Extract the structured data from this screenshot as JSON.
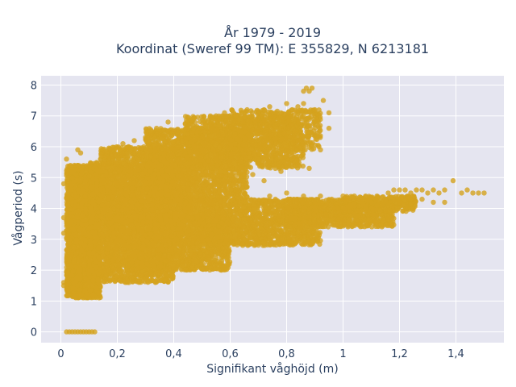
{
  "chart_data": {
    "type": "scatter",
    "title_line1": "År 1979 - 2019",
    "title_line2": "Koordinat (Sweref 99 TM): E 355829, N 6213181",
    "xlabel": "Signifikant våghöjd (m)",
    "ylabel": "Vågperiod (s)",
    "xlim": [
      -0.07,
      1.57
    ],
    "ylim": [
      -0.35,
      8.3
    ],
    "xticks": [
      0,
      0.2,
      0.4,
      0.6,
      0.8,
      1,
      1.2,
      1.4
    ],
    "xtick_labels": [
      "0",
      "0,2",
      "0,4",
      "0,6",
      "0,8",
      "1",
      "1,2",
      "1,4"
    ],
    "yticks": [
      0,
      1,
      2,
      3,
      4,
      5,
      6,
      7,
      8
    ],
    "ytick_labels": [
      "0",
      "1",
      "2",
      "3",
      "4",
      "5",
      "6",
      "7",
      "8"
    ],
    "grid": true,
    "marker_color": "#d4a21e",
    "plot_bg": "#e5e5f0",
    "points": [
      [
        0.02,
        0
      ],
      [
        0.03,
        0
      ],
      [
        0.04,
        0
      ],
      [
        0.05,
        0
      ],
      [
        0.06,
        0
      ],
      [
        0.07,
        0
      ],
      [
        0.08,
        0
      ],
      [
        0.09,
        0
      ],
      [
        0.1,
        0
      ],
      [
        0.11,
        0
      ],
      [
        0.12,
        0
      ],
      [
        0.01,
        1.5
      ],
      [
        0.01,
        1.6
      ],
      [
        0.01,
        3.2
      ],
      [
        0.01,
        3.7
      ],
      [
        0.01,
        4.8
      ],
      [
        0.02,
        5.6
      ],
      [
        0.06,
        5.9
      ],
      [
        0.07,
        5.8
      ],
      [
        0.16,
        5.7
      ],
      [
        0.18,
        5.7
      ],
      [
        0.21,
        5.9
      ],
      [
        0.3,
        6.3
      ],
      [
        0.35,
        6.5
      ],
      [
        0.38,
        6.8
      ],
      [
        0.43,
        6.2
      ],
      [
        0.47,
        6.6
      ],
      [
        0.52,
        6.8
      ],
      [
        0.55,
        7.0
      ],
      [
        0.58,
        7.1
      ],
      [
        0.62,
        7.0
      ],
      [
        0.64,
        6.9
      ],
      [
        0.66,
        7.2
      ],
      [
        0.7,
        7.1
      ],
      [
        0.72,
        7.2
      ],
      [
        0.74,
        7.3
      ],
      [
        0.76,
        7.1
      ],
      [
        0.78,
        7.1
      ],
      [
        0.8,
        7.4
      ],
      [
        0.82,
        7.2
      ],
      [
        0.84,
        7.3
      ],
      [
        0.85,
        7.0
      ],
      [
        0.86,
        7.4
      ],
      [
        0.86,
        7.8
      ],
      [
        0.87,
        7.9
      ],
      [
        0.88,
        7.8
      ],
      [
        0.89,
        7.9
      ],
      [
        0.9,
        7.2
      ],
      [
        0.93,
        7.5
      ],
      [
        0.95,
        7.1
      ],
      [
        0.95,
        6.6
      ],
      [
        0.87,
        6.8
      ],
      [
        0.83,
        6.5
      ],
      [
        0.8,
        6.3
      ],
      [
        0.74,
        6.0
      ],
      [
        0.7,
        5.6
      ],
      [
        0.76,
        5.3
      ],
      [
        0.68,
        5.1
      ],
      [
        0.64,
        5.5
      ],
      [
        0.82,
        5.7
      ],
      [
        0.84,
        5.4
      ],
      [
        0.78,
        5.2
      ],
      [
        0.92,
        5.9
      ],
      [
        0.88,
        5.3
      ],
      [
        0.6,
        5.1
      ],
      [
        0.56,
        4.9
      ],
      [
        0.72,
        4.9
      ],
      [
        0.66,
        4.7
      ],
      [
        0.58,
        4.8
      ],
      [
        0.52,
        4.6
      ],
      [
        0.62,
        4.6
      ],
      [
        0.48,
        4.4
      ],
      [
        0.74,
        4.4
      ],
      [
        0.8,
        4.5
      ],
      [
        0.86,
        4.4
      ],
      [
        0.92,
        4.4
      ],
      [
        0.96,
        4.3
      ],
      [
        1.0,
        4.4
      ],
      [
        1.04,
        4.4
      ],
      [
        1.08,
        4.4
      ],
      [
        1.12,
        4.4
      ],
      [
        1.16,
        4.5
      ],
      [
        1.18,
        4.6
      ],
      [
        1.2,
        4.6
      ],
      [
        1.22,
        4.6
      ],
      [
        1.24,
        4.5
      ],
      [
        1.26,
        4.6
      ],
      [
        1.28,
        4.6
      ],
      [
        1.3,
        4.5
      ],
      [
        1.32,
        4.6
      ],
      [
        1.34,
        4.5
      ],
      [
        1.36,
        4.6
      ],
      [
        1.39,
        4.9
      ],
      [
        1.42,
        4.5
      ],
      [
        1.44,
        4.6
      ],
      [
        1.46,
        4.5
      ],
      [
        1.48,
        4.5
      ],
      [
        1.5,
        4.5
      ],
      [
        1.36,
        4.2
      ],
      [
        1.32,
        4.2
      ],
      [
        1.28,
        4.3
      ],
      [
        1.24,
        4.3
      ],
      [
        1.2,
        4.2
      ],
      [
        1.16,
        4.1
      ],
      [
        1.14,
        4.2
      ],
      [
        1.12,
        4.1
      ],
      [
        1.08,
        4.0
      ],
      [
        0.24,
        6.0
      ],
      [
        0.22,
        6.1
      ],
      [
        0.26,
        6.2
      ],
      [
        0.32,
        6.4
      ],
      [
        0.4,
        6.5
      ],
      [
        0.45,
        6.4
      ]
    ],
    "clouds": [
      {
        "x": [
          0.02,
          0.14
        ],
        "y": [
          1.1,
          5.4
        ],
        "n": 2600
      },
      {
        "x": [
          0.02,
          0.07
        ],
        "y": [
          1.3,
          2.0
        ],
        "n": 250
      },
      {
        "x": [
          0.1,
          0.4
        ],
        "y": [
          1.6,
          5.5
        ],
        "n": 2600
      },
      {
        "x": [
          0.14,
          0.46
        ],
        "y": [
          3.5,
          6.0
        ],
        "n": 1600
      },
      {
        "x": [
          0.3,
          0.66
        ],
        "y": [
          4.2,
          6.6
        ],
        "n": 1700
      },
      {
        "x": [
          0.44,
          0.86
        ],
        "y": [
          5.3,
          7.0
        ],
        "n": 1200
      },
      {
        "x": [
          0.6,
          0.92
        ],
        "y": [
          5.9,
          7.2
        ],
        "n": 500
      },
      {
        "x": [
          0.16,
          0.6
        ],
        "y": [
          2.0,
          3.8
        ],
        "n": 1700
      },
      {
        "x": [
          0.4,
          0.92
        ],
        "y": [
          2.8,
          4.3
        ],
        "n": 1700
      },
      {
        "x": [
          0.8,
          1.18
        ],
        "y": [
          3.4,
          4.3
        ],
        "n": 900
      },
      {
        "x": [
          1.0,
          1.26
        ],
        "y": [
          3.9,
          4.4
        ],
        "n": 300
      }
    ]
  }
}
